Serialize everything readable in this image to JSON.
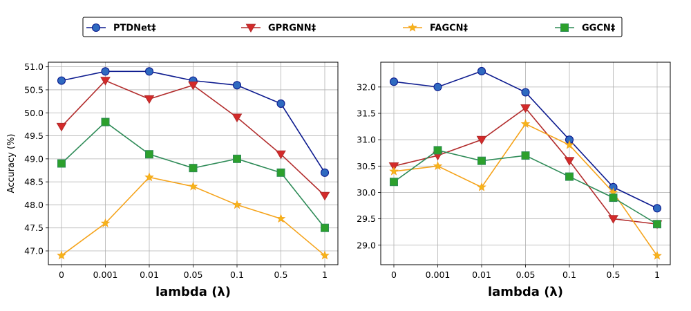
{
  "chart_data": {
    "type": "line",
    "legend": {
      "placement": "top-center",
      "entries": [
        {
          "name": "PTDNet‡",
          "color": "#0d1b8f",
          "fill": "#2f6ac0",
          "marker": "circle"
        },
        {
          "name": "GPRGNN‡",
          "color": "#b22c2c",
          "fill": "#d42a2a",
          "marker": "triangle-down"
        },
        {
          "name": "FAGCN‡",
          "color": "#f5a31a",
          "fill": "#f5b51a",
          "marker": "star"
        },
        {
          "name": "GGCN‡",
          "color": "#2e8b57",
          "fill": "#2ca02c",
          "marker": "square"
        }
      ]
    },
    "panels": [
      {
        "categories": [
          "0",
          "0.001",
          "0.01",
          "0.05",
          "0.1",
          "0.5",
          "1"
        ],
        "xlabel": "lambda (λ)",
        "ylabel": "Accuracy (%)",
        "ylim": [
          46.7,
          51.1
        ],
        "yticks": [
          "47.0",
          "47.5",
          "48.0",
          "48.5",
          "49.0",
          "49.5",
          "50.0",
          "50.5",
          "51.0"
        ],
        "grid": true,
        "series": [
          {
            "name": "PTDNet‡",
            "values": [
              50.7,
              50.9,
              50.9,
              50.7,
              50.6,
              50.2,
              48.7
            ]
          },
          {
            "name": "GPRGNN‡",
            "values": [
              49.7,
              50.7,
              50.3,
              50.6,
              49.9,
              49.1,
              48.2
            ]
          },
          {
            "name": "FAGCN‡",
            "values": [
              46.9,
              47.6,
              48.6,
              48.4,
              48.0,
              47.7,
              46.9
            ]
          },
          {
            "name": "GGCN‡",
            "values": [
              48.9,
              49.8,
              49.1,
              48.8,
              49.0,
              48.7,
              47.5
            ]
          }
        ]
      },
      {
        "categories": [
          "0",
          "0.001",
          "0.01",
          "0.05",
          "0.1",
          "0.5",
          "1"
        ],
        "xlabel": "lambda (λ)",
        "ylabel": "",
        "ylim": [
          28.63,
          32.47
        ],
        "yticks": [
          "29.0",
          "29.5",
          "30.0",
          "30.5",
          "31.0",
          "31.5",
          "32.0"
        ],
        "grid": true,
        "series": [
          {
            "name": "PTDNet‡",
            "values": [
              32.1,
              32.0,
              32.3,
              31.9,
              31.0,
              30.1,
              29.7
            ]
          },
          {
            "name": "GPRGNN‡",
            "values": [
              30.5,
              30.7,
              31.0,
              31.6,
              30.6,
              29.5,
              29.4
            ]
          },
          {
            "name": "FAGCN‡",
            "values": [
              30.4,
              30.5,
              30.1,
              31.3,
              30.9,
              30.0,
              28.8
            ]
          },
          {
            "name": "GGCN‡",
            "values": [
              30.2,
              30.8,
              30.6,
              30.7,
              30.3,
              29.9,
              29.4
            ]
          }
        ]
      }
    ]
  }
}
